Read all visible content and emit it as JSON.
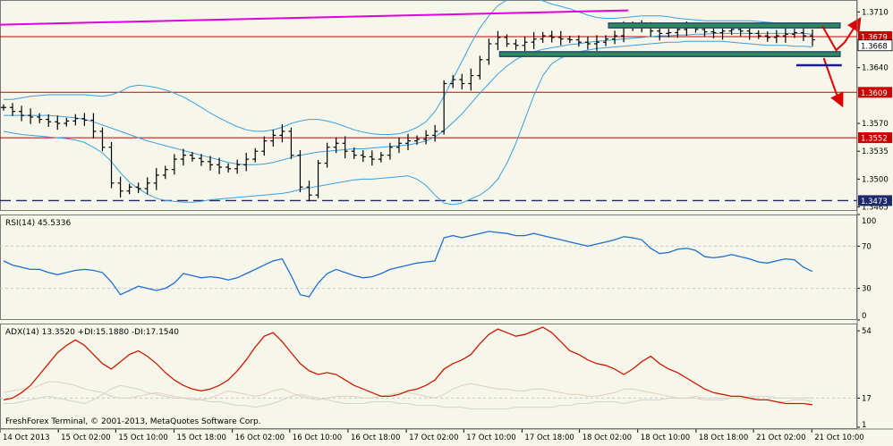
{
  "chart_data": [
    {
      "panel": "price",
      "type": "ohlc",
      "ylim": [
        1.346,
        1.3725
      ],
      "y_ticks": [
        "1.3710",
        "1.3679",
        "1.3668",
        "1.3640",
        "1.3609",
        "1.3570",
        "1.3552",
        "1.3535",
        "1.3500",
        "1.3473",
        "1.3465"
      ],
      "y_tick_values": [
        1.371,
        1.3679,
        1.3668,
        1.364,
        1.3609,
        1.357,
        1.3552,
        1.3535,
        1.35,
        1.3473,
        1.3465
      ],
      "highlighted_levels": [
        {
          "label": "1.3679",
          "value": 1.3679,
          "color": "#cc0000",
          "style": "solid"
        },
        {
          "label": "1.3609",
          "value": 1.3609,
          "color": "#cc0000",
          "style": "solid"
        },
        {
          "label": "1.3552",
          "value": 1.3552,
          "color": "#cc0000",
          "style": "solid"
        },
        {
          "label": "1.3473",
          "value": 1.3473,
          "color": "#1e2a6a",
          "style": "dashed"
        }
      ],
      "current_price": {
        "label": "1.3668",
        "value": 1.3668
      },
      "close_path": [
        1.359,
        1.3585,
        1.358,
        1.3578,
        1.3575,
        1.3572,
        1.357,
        1.3573,
        1.3576,
        1.3574,
        1.356,
        1.354,
        1.3495,
        1.3485,
        1.349,
        1.3488,
        1.3495,
        1.3505,
        1.3512,
        1.3525,
        1.353,
        1.3526,
        1.3522,
        1.3518,
        1.3515,
        1.3513,
        1.3518,
        1.3525,
        1.3535,
        1.3548,
        1.3555,
        1.356,
        1.353,
        1.349,
        1.348,
        1.352,
        1.354,
        1.3545,
        1.3535,
        1.353,
        1.3528,
        1.3525,
        1.353,
        1.354,
        1.3545,
        1.3548,
        1.355,
        1.3555,
        1.356,
        1.362,
        1.3625,
        1.362,
        1.363,
        1.365,
        1.367,
        1.3678,
        1.367,
        1.3668,
        1.3672,
        1.3676,
        1.368,
        1.3678,
        1.3676,
        1.3675,
        1.3672,
        1.367,
        1.3672,
        1.3676,
        1.368,
        1.369,
        1.3694,
        1.369,
        1.3686,
        1.3683,
        1.3684,
        1.3688,
        1.369,
        1.3688,
        1.3685,
        1.3684,
        1.3686,
        1.3688,
        1.3686,
        1.3683,
        1.368,
        1.3678,
        1.368,
        1.3682,
        1.3684,
        1.368,
        1.3675
      ],
      "bollinger": {
        "upper": [
          1.36,
          1.36,
          1.3602,
          1.3604,
          1.3605,
          1.3606,
          1.3606,
          1.3606,
          1.3606,
          1.3606,
          1.3605,
          1.3604,
          1.3606,
          1.361,
          1.3616,
          1.3618,
          1.3617,
          1.3615,
          1.3612,
          1.3608,
          1.3603,
          1.3597,
          1.359,
          1.3583,
          1.3577,
          1.3571,
          1.3566,
          1.3562,
          1.356,
          1.356,
          1.3562,
          1.3565,
          1.357,
          1.3573,
          1.3575,
          1.3575,
          1.3573,
          1.357,
          1.3566,
          1.3562,
          1.3559,
          1.3557,
          1.3556,
          1.3556,
          1.3557,
          1.356,
          1.3565,
          1.3572,
          1.3585,
          1.3604,
          1.3626,
          1.3648,
          1.367,
          1.369,
          1.3705,
          1.3718,
          1.3725,
          1.3728,
          1.3728,
          1.3727,
          1.3724,
          1.372,
          1.3717,
          1.3714,
          1.371,
          1.3706,
          1.3703,
          1.3702,
          1.3702,
          1.3703,
          1.3704,
          1.3705,
          1.3705,
          1.3705,
          1.3704,
          1.3702,
          1.3701,
          1.37,
          1.3699,
          1.3699,
          1.3699,
          1.3699,
          1.3699,
          1.3699,
          1.3698,
          1.3697,
          1.3696,
          1.3696,
          1.3696,
          1.3696,
          1.3696
        ],
        "middle": [
          1.358,
          1.358,
          1.358,
          1.358,
          1.358,
          1.358,
          1.3579,
          1.3578,
          1.3577,
          1.3575,
          1.3572,
          1.3568,
          1.3564,
          1.356,
          1.3556,
          1.3552,
          1.3548,
          1.3545,
          1.3542,
          1.3539,
          1.3536,
          1.3533,
          1.353,
          1.3527,
          1.3524,
          1.3521,
          1.3519,
          1.3518,
          1.3518,
          1.3519,
          1.3521,
          1.3524,
          1.3527,
          1.353,
          1.3532,
          1.3534,
          1.3535,
          1.3536,
          1.3537,
          1.3538,
          1.3538,
          1.3539,
          1.354,
          1.3541,
          1.3542,
          1.3543,
          1.3545,
          1.3548,
          1.3553,
          1.3561,
          1.3571,
          1.3582,
          1.3595,
          1.3608,
          1.362,
          1.3632,
          1.3642,
          1.365,
          1.3656,
          1.366,
          1.3663,
          1.3665,
          1.3667,
          1.3669,
          1.367,
          1.3672,
          1.3673,
          1.3674,
          1.3675,
          1.3676,
          1.3677,
          1.3678,
          1.3679,
          1.368,
          1.368,
          1.3681,
          1.3681,
          1.3682,
          1.3682,
          1.3683,
          1.3683,
          1.3683,
          1.3683,
          1.3683,
          1.3683,
          1.3683,
          1.3683,
          1.3683,
          1.3683,
          1.3683,
          1.3682
        ],
        "lower": [
          1.356,
          1.3558,
          1.3556,
          1.3555,
          1.3554,
          1.3553,
          1.3552,
          1.3551,
          1.3549,
          1.3546,
          1.354,
          1.3533,
          1.3522,
          1.3508,
          1.3496,
          1.3488,
          1.3481,
          1.3476,
          1.3473,
          1.3472,
          1.3471,
          1.3471,
          1.3472,
          1.3474,
          1.3475,
          1.3476,
          1.3477,
          1.3478,
          1.3479,
          1.348,
          1.3481,
          1.3482,
          1.3484,
          1.3487,
          1.3489,
          1.3491,
          1.3493,
          1.3495,
          1.3497,
          1.3499,
          1.35,
          1.35,
          1.3501,
          1.3502,
          1.3503,
          1.3504,
          1.35,
          1.3492,
          1.348,
          1.347,
          1.3468,
          1.347,
          1.3475,
          1.348,
          1.3488,
          1.35,
          1.352,
          1.3545,
          1.3575,
          1.3605,
          1.363,
          1.3645,
          1.3652,
          1.3657,
          1.366,
          1.3662,
          1.3664,
          1.3665,
          1.3666,
          1.3667,
          1.3668,
          1.3669,
          1.367,
          1.3671,
          1.3672,
          1.3672,
          1.3673,
          1.3673,
          1.3673,
          1.3673,
          1.3673,
          1.3672,
          1.3671,
          1.367,
          1.3669,
          1.3668,
          1.3668,
          1.3668,
          1.3667,
          1.3667,
          1.3666
        ]
      },
      "channel_line": {
        "from": 1.3694,
        "to": 1.3712,
        "color": "#e000e0"
      },
      "boxes": [
        {
          "x0": 0.71,
          "x1": 0.98,
          "top": 1.3696,
          "bottom": 1.369,
          "color": "#2a4a7a"
        },
        {
          "x0": 0.583,
          "x1": 0.98,
          "top": 1.366,
          "bottom": 1.3654,
          "color": "#2a4a7a"
        }
      ],
      "projections": [
        {
          "points": [
            [
              0.9595,
              1.3692
            ],
            [
              0.9755,
              1.3662
            ],
            [
              0.9855,
              1.3672
            ],
            [
              1.0,
              1.3696
            ]
          ],
          "color": "#dd0000"
        },
        {
          "points": [
            [
              0.961,
              1.3652
            ],
            [
              0.9755,
              1.3608
            ],
            [
              0.98,
              1.3598
            ]
          ],
          "color": "#dd0000"
        }
      ],
      "target_marker": {
        "x0": 0.929,
        "x1": 0.982,
        "value": 1.3652,
        "color": "#1a1a8a"
      }
    },
    {
      "panel": "rsi",
      "type": "line",
      "title": "RSI(14) 45.5336",
      "ylim": [
        0,
        100
      ],
      "y_ticks": [
        "100",
        "70",
        "30",
        "0"
      ],
      "y_tick_values": [
        100,
        70,
        30,
        0
      ],
      "levels": [
        70,
        30
      ],
      "values": [
        56,
        52,
        50,
        48,
        48,
        45,
        43,
        45,
        47,
        48,
        47,
        45,
        36,
        24,
        28,
        32,
        30,
        28,
        30,
        35,
        44,
        42,
        40,
        41,
        40,
        38,
        40,
        44,
        48,
        52,
        56,
        58,
        42,
        24,
        22,
        35,
        44,
        48,
        45,
        42,
        40,
        41,
        44,
        48,
        50,
        52,
        54,
        55,
        56,
        78,
        80,
        78,
        80,
        82,
        84,
        83,
        82,
        80,
        80,
        82,
        80,
        78,
        76,
        74,
        72,
        70,
        72,
        74,
        76,
        79,
        78,
        76,
        68,
        63,
        64,
        67,
        68,
        66,
        60,
        59,
        60,
        62,
        60,
        58,
        55,
        54,
        56,
        58,
        57,
        50,
        46
      ]
    },
    {
      "panel": "adx",
      "type": "line",
      "title": "ADX(14) 13.3520 +DI:15.1880 -DI:17.1540",
      "ylim": [
        0,
        58
      ],
      "y_ticks": [
        "54",
        "17",
        "1"
      ],
      "y_tick_values": [
        54,
        17,
        1
      ],
      "levels": [
        17
      ],
      "series": [
        {
          "values": [
            16,
            17,
            20,
            24,
            30,
            36,
            42,
            46,
            49,
            46,
            41,
            36,
            33,
            37,
            41,
            43,
            40,
            36,
            31,
            27,
            24,
            22,
            21,
            22,
            24,
            27,
            32,
            38,
            45,
            51,
            53,
            48,
            42,
            36,
            32,
            30,
            31,
            30,
            27,
            24,
            22,
            20,
            18,
            18,
            19,
            21,
            22,
            24,
            27,
            33,
            36,
            38,
            41,
            47,
            52,
            55,
            53,
            51,
            52,
            54,
            56,
            53,
            48,
            43,
            41,
            38,
            36,
            35,
            33,
            30,
            33,
            37,
            40,
            36,
            33,
            31,
            28,
            25,
            22,
            20,
            19,
            18,
            18,
            17,
            16,
            16,
            15,
            14,
            14,
            14,
            13.35
          ],
          "color": "#cc1a00"
        },
        {
          "values": [
            20,
            21,
            22,
            22,
            24,
            26,
            26,
            25,
            24,
            22,
            21,
            20,
            18,
            17,
            17,
            18,
            19,
            20,
            19,
            18,
            17,
            16,
            16,
            17,
            19,
            21,
            20,
            19,
            18,
            19,
            21,
            22,
            20,
            18,
            17,
            16,
            17,
            18,
            18,
            18,
            17,
            17,
            18,
            19,
            20,
            20,
            19,
            18,
            17,
            19,
            22,
            24,
            25,
            24,
            23,
            22,
            22,
            21,
            21,
            22,
            22,
            21,
            20,
            19,
            19,
            18,
            18,
            19,
            20,
            22,
            22,
            21,
            20,
            19,
            18,
            17,
            17,
            17,
            16,
            16,
            16,
            17,
            17,
            16,
            16,
            16,
            15,
            15,
            16,
            16,
            15.19
          ],
          "color": "#e2cfbd"
        },
        {
          "values": [
            14,
            14,
            15,
            16,
            17,
            18,
            17,
            16,
            15,
            14,
            16,
            19,
            22,
            24,
            23,
            22,
            20,
            19,
            18,
            17,
            17,
            17,
            16,
            15,
            15,
            14,
            13,
            13,
            12,
            13,
            14,
            16,
            18,
            19,
            18,
            17,
            16,
            15,
            14,
            14,
            14,
            15,
            15,
            15,
            14,
            14,
            13,
            13,
            13,
            12,
            12,
            12,
            11,
            11,
            11,
            11,
            11,
            12,
            12,
            12,
            12,
            12,
            13,
            13,
            14,
            14,
            15,
            15,
            15,
            14,
            15,
            16,
            16,
            16,
            17,
            17,
            17,
            18,
            17,
            17,
            17,
            17,
            17,
            18,
            18,
            18,
            17,
            17,
            17,
            17,
            17.15
          ],
          "color": "#d3d3d3"
        }
      ]
    }
  ],
  "x_axis": {
    "labels": [
      "14 Oct 2013",
      "15 Oct 02:00",
      "15 Oct 10:00",
      "15 Oct 18:00",
      "16 Oct 02:00",
      "16 Oct 10:00",
      "16 Oct 18:00",
      "17 Oct 02:00",
      "17 Oct 10:00",
      "17 Oct 18:00",
      "18 Oct 02:00",
      "18 Oct 10:00",
      "18 Oct 18:00",
      "21 Oct 02:00",
      "21 Oct 10:00"
    ],
    "positions": [
      0,
      0.068,
      0.135,
      0.203,
      0.271,
      0.338,
      0.406,
      0.474,
      0.541,
      0.609,
      0.676,
      0.744,
      0.812,
      0.879,
      0.947
    ]
  },
  "footer": {
    "copyright": "FreshForex Terminal, © 2001-2013, MetaQuotes Software Corp."
  },
  "colors": {
    "background": "#f7f6ea",
    "bars": "#000000",
    "bollinger": "#3aa0e0",
    "rsi": "#1f6fd0",
    "adx": "#cc1a00",
    "grid": "#c8c8c8",
    "label_red": "#cc0000",
    "label_navy": "#1e2a6a"
  }
}
